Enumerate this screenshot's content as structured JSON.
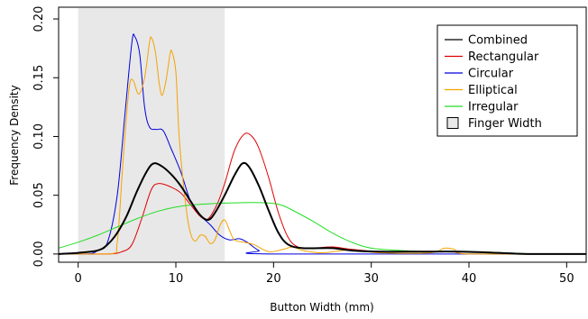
{
  "chart_data": {
    "type": "line",
    "title": "",
    "xlabel": "Button Width (mm)",
    "ylabel": "Frequency Density",
    "xlim": [
      -2,
      52
    ],
    "ylim": [
      -0.007,
      0.21
    ],
    "xticks": [
      0,
      10,
      20,
      30,
      40,
      50
    ],
    "yticks": [
      0.0,
      0.05,
      0.1,
      0.15,
      0.2
    ],
    "ytick_labels": [
      "0.00",
      "0.05",
      "0.10",
      "0.15",
      "0.20"
    ],
    "grid": false,
    "legend_position": "top-right",
    "shaded_region": {
      "name": "Finger Width",
      "x_start": 0,
      "x_end": 15,
      "color": "#e8e8e8"
    },
    "series": [
      {
        "name": "Combined",
        "color": "#000000",
        "line_width": 2,
        "points": [
          [
            -2,
            0
          ],
          [
            0,
            0.001
          ],
          [
            2,
            0.003
          ],
          [
            3,
            0.008
          ],
          [
            4,
            0.018
          ],
          [
            5,
            0.033
          ],
          [
            6,
            0.053
          ],
          [
            7,
            0.07
          ],
          [
            7.7,
            0.077
          ],
          [
            8.5,
            0.075
          ],
          [
            9.5,
            0.068
          ],
          [
            10.5,
            0.058
          ],
          [
            11.5,
            0.045
          ],
          [
            12.5,
            0.033
          ],
          [
            13.3,
            0.029
          ],
          [
            14,
            0.035
          ],
          [
            15,
            0.05
          ],
          [
            16,
            0.067
          ],
          [
            16.8,
            0.077
          ],
          [
            17.5,
            0.074
          ],
          [
            18.5,
            0.058
          ],
          [
            19.5,
            0.037
          ],
          [
            20.5,
            0.018
          ],
          [
            21.5,
            0.008
          ],
          [
            23,
            0.005
          ],
          [
            26,
            0.005
          ],
          [
            28,
            0.003
          ],
          [
            31,
            0.002
          ],
          [
            35,
            0.002
          ],
          [
            39,
            0.002
          ],
          [
            43,
            0.001
          ],
          [
            46,
            0.0
          ],
          [
            52,
            0.0
          ]
        ]
      },
      {
        "name": "Rectangular",
        "color": "#dd0000",
        "line_width": 1,
        "points": [
          [
            -2,
            0
          ],
          [
            3,
            0
          ],
          [
            4.5,
            0.002
          ],
          [
            5.5,
            0.008
          ],
          [
            6.5,
            0.03
          ],
          [
            7.5,
            0.055
          ],
          [
            8.3,
            0.06
          ],
          [
            9.5,
            0.057
          ],
          [
            10.5,
            0.052
          ],
          [
            11.5,
            0.042
          ],
          [
            12.5,
            0.032
          ],
          [
            13.3,
            0.03
          ],
          [
            14.2,
            0.042
          ],
          [
            15,
            0.06
          ],
          [
            16,
            0.088
          ],
          [
            17,
            0.102
          ],
          [
            17.8,
            0.1
          ],
          [
            18.5,
            0.09
          ],
          [
            19.5,
            0.065
          ],
          [
            20.5,
            0.035
          ],
          [
            21.5,
            0.014
          ],
          [
            22.5,
            0.006
          ],
          [
            24,
            0.005
          ],
          [
            26,
            0.006
          ],
          [
            28,
            0.004
          ],
          [
            31,
            0.002
          ],
          [
            35,
            0.002
          ],
          [
            39,
            0.002
          ],
          [
            43,
            0.001
          ],
          [
            46,
            0.0
          ],
          [
            52,
            0.0
          ]
        ]
      },
      {
        "name": "Circular",
        "color": "#0000dd",
        "line_width": 1,
        "points": [
          [
            -2,
            0
          ],
          [
            1,
            0.0
          ],
          [
            2,
            0.003
          ],
          [
            3,
            0.01
          ],
          [
            4,
            0.05
          ],
          [
            4.8,
            0.12
          ],
          [
            5.5,
            0.18
          ],
          [
            5.8,
            0.185
          ],
          [
            6.3,
            0.17
          ],
          [
            6.8,
            0.125
          ],
          [
            7.3,
            0.108
          ],
          [
            8,
            0.106
          ],
          [
            8.7,
            0.105
          ],
          [
            9.5,
            0.09
          ],
          [
            10.5,
            0.07
          ],
          [
            11.5,
            0.045
          ],
          [
            12.5,
            0.033
          ],
          [
            13.5,
            0.025
          ],
          [
            14.5,
            0.016
          ],
          [
            15.5,
            0.012
          ],
          [
            16.5,
            0.013
          ],
          [
            17.3,
            0.01
          ],
          [
            18.5,
            0.003
          ],
          [
            20,
            0.0
          ],
          [
            52,
            0.0
          ]
        ]
      },
      {
        "name": "Elliptical",
        "color": "#f5a300",
        "line_width": 1,
        "points": [
          [
            -2,
            0
          ],
          [
            3.3,
            0.0
          ],
          [
            4,
            0.01
          ],
          [
            4.6,
            0.08
          ],
          [
            5.2,
            0.14
          ],
          [
            5.6,
            0.148
          ],
          [
            6.2,
            0.136
          ],
          [
            6.8,
            0.15
          ],
          [
            7.3,
            0.18
          ],
          [
            7.5,
            0.184
          ],
          [
            7.9,
            0.172
          ],
          [
            8.3,
            0.145
          ],
          [
            8.6,
            0.135
          ],
          [
            9,
            0.148
          ],
          [
            9.4,
            0.17
          ],
          [
            9.6,
            0.172
          ],
          [
            10,
            0.155
          ],
          [
            10.3,
            0.105
          ],
          [
            10.7,
            0.065
          ],
          [
            11.2,
            0.03
          ],
          [
            11.6,
            0.015
          ],
          [
            12,
            0.011
          ],
          [
            12.5,
            0.016
          ],
          [
            13,
            0.015
          ],
          [
            13.5,
            0.009
          ],
          [
            14,
            0.012
          ],
          [
            14.5,
            0.024
          ],
          [
            15,
            0.029
          ],
          [
            15.5,
            0.02
          ],
          [
            16,
            0.012
          ],
          [
            17,
            0.01
          ],
          [
            18,
            0.008
          ],
          [
            19.5,
            0.002
          ],
          [
            21,
            0.004
          ],
          [
            22,
            0.006
          ],
          [
            23,
            0.003
          ],
          [
            25,
            0.001
          ],
          [
            27,
            0.003
          ],
          [
            28.5,
            0.003
          ],
          [
            31,
            0.001
          ],
          [
            36,
            0.001
          ],
          [
            37.5,
            0.005
          ],
          [
            38.5,
            0.004
          ],
          [
            40,
            0.0
          ],
          [
            52,
            0.0
          ]
        ]
      },
      {
        "name": "Irregular",
        "color": "#22dd22",
        "line_width": 1,
        "points": [
          [
            -2,
            0.005
          ],
          [
            0,
            0.01
          ],
          [
            2,
            0.016
          ],
          [
            4,
            0.023
          ],
          [
            6,
            0.03
          ],
          [
            8,
            0.036
          ],
          [
            10,
            0.04
          ],
          [
            12,
            0.042
          ],
          [
            14,
            0.043
          ],
          [
            16,
            0.0435
          ],
          [
            18,
            0.0438
          ],
          [
            20,
            0.043
          ],
          [
            21,
            0.041
          ],
          [
            22,
            0.037
          ],
          [
            24,
            0.028
          ],
          [
            26,
            0.018
          ],
          [
            28,
            0.01
          ],
          [
            30,
            0.005
          ],
          [
            33,
            0.003
          ],
          [
            36,
            0.002
          ],
          [
            40,
            0.002
          ],
          [
            44,
            0.001
          ],
          [
            47,
            0.0
          ],
          [
            52,
            0.0
          ]
        ]
      }
    ],
    "legend": [
      {
        "label": "Combined",
        "kind": "line",
        "color": "#000000"
      },
      {
        "label": "Rectangular",
        "kind": "line",
        "color": "#dd0000"
      },
      {
        "label": "Circular",
        "kind": "line",
        "color": "#0000dd"
      },
      {
        "label": "Elliptical",
        "kind": "line",
        "color": "#f5a300"
      },
      {
        "label": "Irregular",
        "kind": "line",
        "color": "#22dd22"
      },
      {
        "label": "Finger Width",
        "kind": "box",
        "color": "#e8e8e8"
      }
    ]
  }
}
